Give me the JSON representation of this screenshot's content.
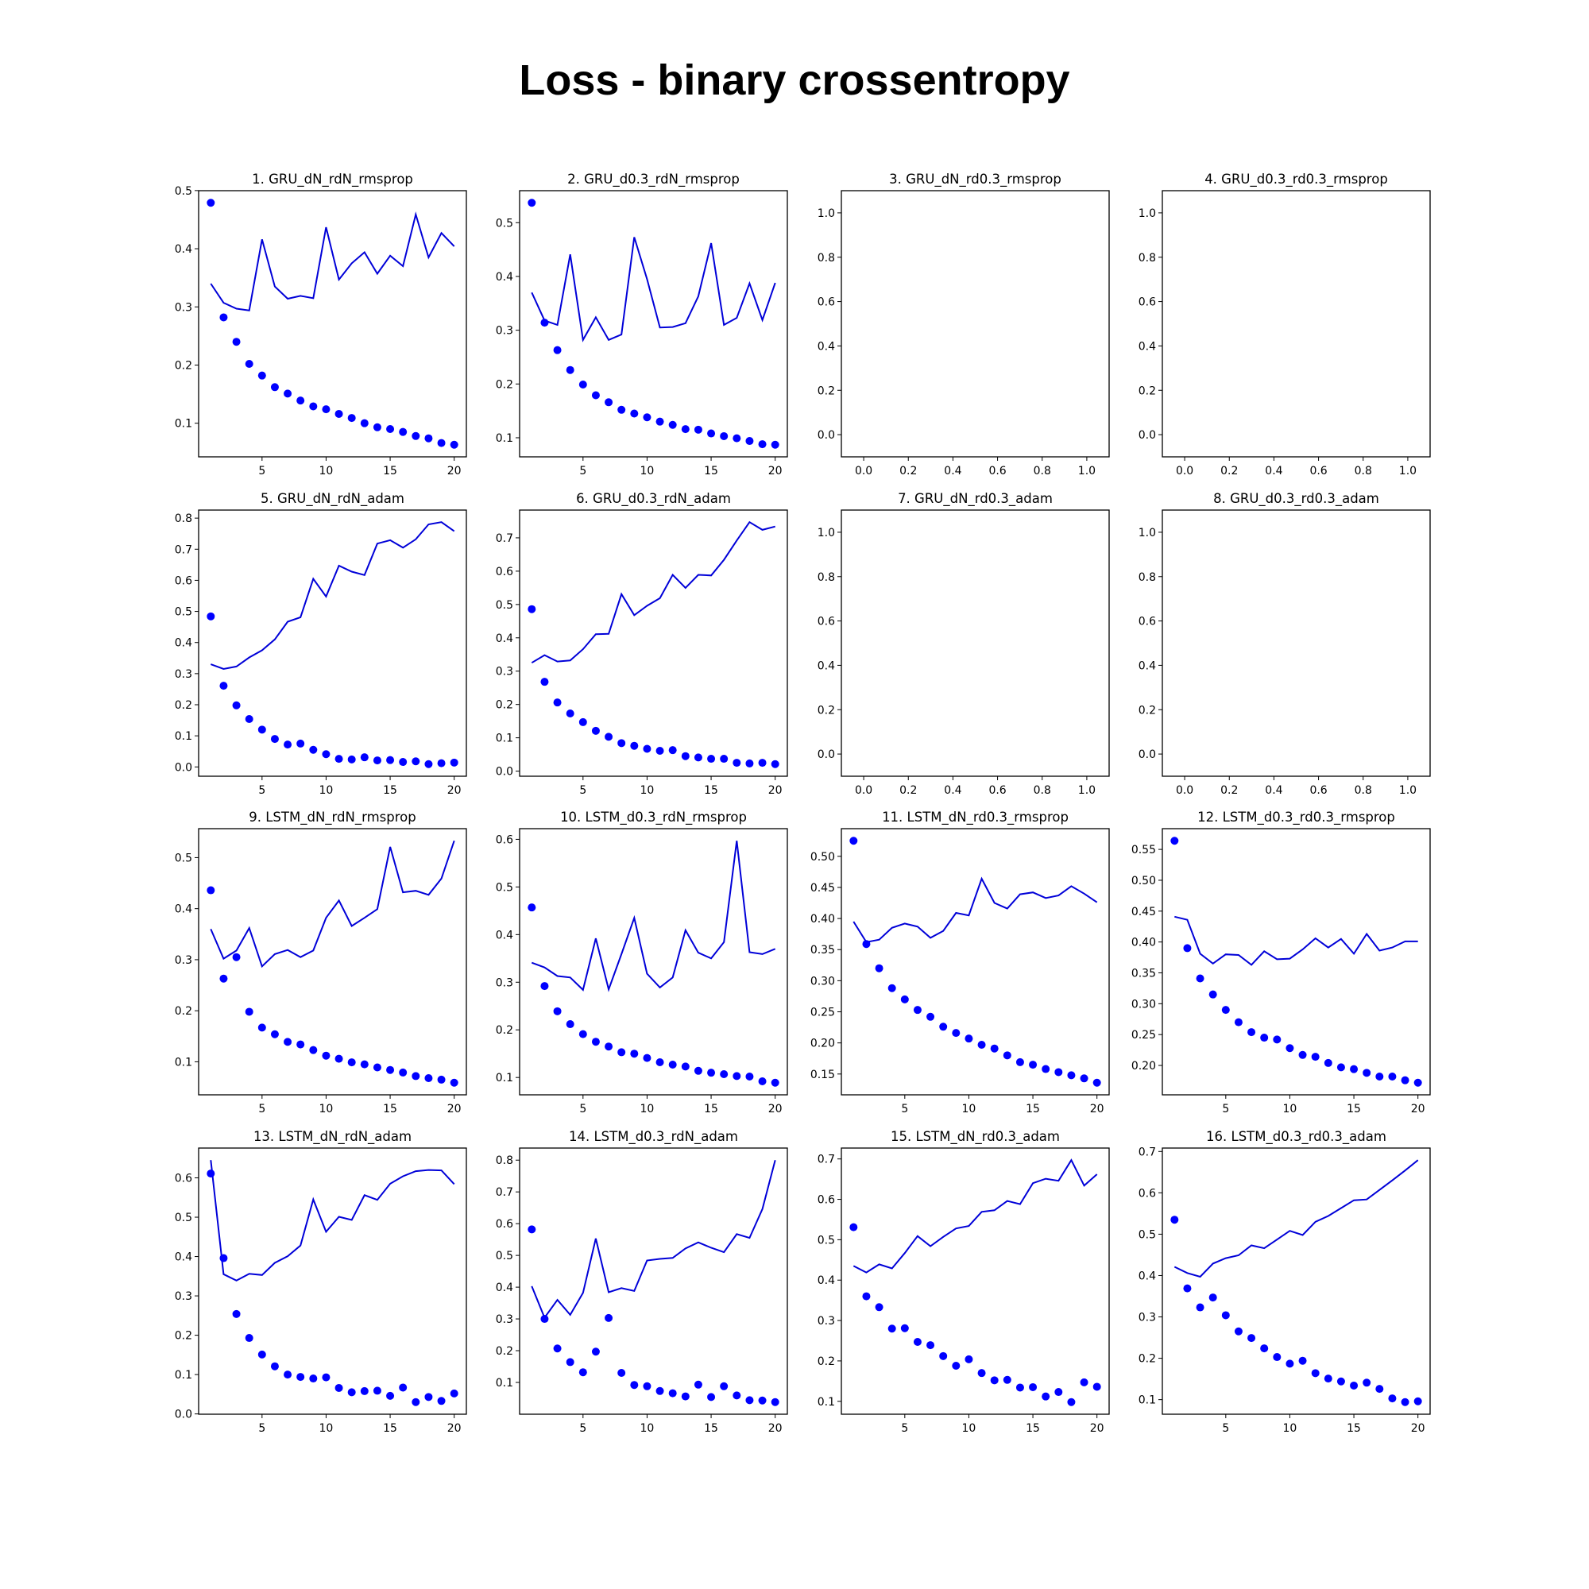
{
  "title": "Loss - binary crossentropy",
  "colors": {
    "line": "#0000d8",
    "dots": "#0000ff",
    "frame": "#000000"
  },
  "chart_data": [
    {
      "type": "line+scatter",
      "title": "1. GRU_dN_rdN_rmsprop",
      "x": [
        1,
        20
      ],
      "xticks": [
        "5",
        "10",
        "15",
        "20"
      ],
      "yticks": [
        "0.1",
        "0.2",
        "0.3",
        "0.4",
        "0.5"
      ],
      "line": [
        0.34,
        0.307,
        0.297,
        0.294,
        0.416,
        0.335,
        0.314,
        0.319,
        0.315,
        0.437,
        0.347,
        0.375,
        0.394,
        0.357,
        0.388,
        0.37,
        0.459,
        0.385,
        0.427,
        0.404
      ],
      "dots": [
        0.479,
        0.282,
        0.24,
        0.202,
        0.182,
        0.162,
        0.151,
        0.139,
        0.129,
        0.124,
        0.116,
        0.109,
        0.1,
        0.093,
        0.09,
        0.085,
        0.078,
        0.074,
        0.066,
        0.063
      ]
    },
    {
      "type": "line+scatter",
      "title": "2. GRU_d0.3_rdN_rmsprop",
      "x": [
        1,
        20
      ],
      "xticks": [
        "5",
        "10",
        "15",
        "20"
      ],
      "yticks": [
        "0.1",
        "0.2",
        "0.3",
        "0.4",
        "0.5"
      ],
      "line": [
        0.37,
        0.318,
        0.31,
        0.441,
        0.282,
        0.324,
        0.282,
        0.292,
        0.473,
        0.395,
        0.305,
        0.306,
        0.313,
        0.363,
        0.462,
        0.31,
        0.323,
        0.387,
        0.319,
        0.388
      ],
      "dots": [
        0.537,
        0.314,
        0.263,
        0.226,
        0.199,
        0.179,
        0.166,
        0.152,
        0.145,
        0.138,
        0.13,
        0.124,
        0.116,
        0.115,
        0.108,
        0.103,
        0.099,
        0.094,
        0.088,
        0.087
      ]
    },
    {
      "type": "empty",
      "title": "3. GRU_dN_rd0.3_rmsprop",
      "xticks": [
        "0.0",
        "0.2",
        "0.4",
        "0.6",
        "0.8",
        "1.0"
      ],
      "yticks": [
        "0.0",
        "0.2",
        "0.4",
        "0.6",
        "0.8",
        "1.0"
      ]
    },
    {
      "type": "empty",
      "title": "4. GRU_d0.3_rd0.3_rmsprop",
      "xticks": [
        "0.0",
        "0.2",
        "0.4",
        "0.6",
        "0.8",
        "1.0"
      ],
      "yticks": [
        "0.0",
        "0.2",
        "0.4",
        "0.6",
        "0.8",
        "1.0"
      ]
    },
    {
      "type": "line+scatter",
      "title": "5. GRU_dN_rdN_adam",
      "x": [
        1,
        20
      ],
      "xticks": [
        "5",
        "10",
        "15",
        "20"
      ],
      "yticks": [
        "0.0",
        "0.1",
        "0.2",
        "0.3",
        "0.4",
        "0.5",
        "0.6",
        "0.7",
        "0.8"
      ],
      "line": [
        0.33,
        0.315,
        0.323,
        0.352,
        0.375,
        0.41,
        0.467,
        0.481,
        0.605,
        0.548,
        0.647,
        0.628,
        0.617,
        0.718,
        0.729,
        0.705,
        0.732,
        0.78,
        0.787,
        0.758
      ],
      "dots": [
        0.484,
        0.261,
        0.198,
        0.154,
        0.12,
        0.09,
        0.072,
        0.075,
        0.055,
        0.041,
        0.026,
        0.024,
        0.031,
        0.021,
        0.022,
        0.016,
        0.018,
        0.009,
        0.012,
        0.014
      ]
    },
    {
      "type": "line+scatter",
      "title": "6. GRU_d0.3_rdN_adam",
      "x": [
        1,
        20
      ],
      "xticks": [
        "5",
        "10",
        "15",
        "20"
      ],
      "yticks": [
        "0.0",
        "0.1",
        "0.2",
        "0.3",
        "0.4",
        "0.5",
        "0.6",
        "0.7"
      ],
      "line": [
        0.325,
        0.348,
        0.329,
        0.332,
        0.366,
        0.411,
        0.412,
        0.531,
        0.468,
        0.496,
        0.519,
        0.589,
        0.55,
        0.589,
        0.587,
        0.634,
        0.692,
        0.747,
        0.724,
        0.734
      ],
      "dots": [
        0.486,
        0.268,
        0.206,
        0.173,
        0.147,
        0.121,
        0.103,
        0.084,
        0.076,
        0.067,
        0.061,
        0.063,
        0.045,
        0.041,
        0.037,
        0.037,
        0.025,
        0.023,
        0.025,
        0.021
      ]
    },
    {
      "type": "empty",
      "title": "7. GRU_dN_rd0.3_adam",
      "xticks": [
        "0.0",
        "0.2",
        "0.4",
        "0.6",
        "0.8",
        "1.0"
      ],
      "yticks": [
        "0.0",
        "0.2",
        "0.4",
        "0.6",
        "0.8",
        "1.0"
      ]
    },
    {
      "type": "empty",
      "title": "8. GRU_d0.3_rd0.3_adam",
      "xticks": [
        "0.0",
        "0.2",
        "0.4",
        "0.6",
        "0.8",
        "1.0"
      ],
      "yticks": [
        "0.0",
        "0.2",
        "0.4",
        "0.6",
        "0.8",
        "1.0"
      ]
    },
    {
      "type": "line+scatter",
      "title": "9. LSTM_dN_rdN_rmsprop",
      "x": [
        1,
        20
      ],
      "xticks": [
        "5",
        "10",
        "15",
        "20"
      ],
      "yticks": [
        "0.1",
        "0.2",
        "0.3",
        "0.4",
        "0.5"
      ],
      "line": [
        0.36,
        0.302,
        0.318,
        0.362,
        0.287,
        0.311,
        0.319,
        0.305,
        0.318,
        0.382,
        0.416,
        0.366,
        0.382,
        0.399,
        0.521,
        0.432,
        0.435,
        0.427,
        0.459,
        0.533
      ],
      "dots": [
        0.436,
        0.263,
        0.305,
        0.198,
        0.167,
        0.154,
        0.139,
        0.134,
        0.123,
        0.112,
        0.106,
        0.099,
        0.095,
        0.089,
        0.084,
        0.079,
        0.072,
        0.068,
        0.065,
        0.059
      ]
    },
    {
      "type": "line+scatter",
      "title": "10. LSTM_d0.3_rdN_rmsprop",
      "x": [
        1,
        20
      ],
      "xticks": [
        "5",
        "10",
        "15",
        "20"
      ],
      "yticks": [
        "0.1",
        "0.2",
        "0.3",
        "0.4",
        "0.5",
        "0.6"
      ],
      "line": [
        0.341,
        0.331,
        0.313,
        0.31,
        0.284,
        0.392,
        0.285,
        0.359,
        0.435,
        0.318,
        0.289,
        0.31,
        0.409,
        0.362,
        0.35,
        0.384,
        0.597,
        0.363,
        0.359,
        0.37
      ],
      "dots": [
        0.457,
        0.292,
        0.239,
        0.212,
        0.191,
        0.175,
        0.165,
        0.153,
        0.15,
        0.141,
        0.132,
        0.127,
        0.123,
        0.114,
        0.11,
        0.107,
        0.103,
        0.102,
        0.092,
        0.089
      ]
    },
    {
      "type": "line+scatter",
      "title": "11. LSTM_dN_rd0.3_rmsprop",
      "x": [
        1,
        20
      ],
      "xticks": [
        "5",
        "10",
        "15",
        "20"
      ],
      "yticks": [
        "0.15",
        "0.20",
        "0.25",
        "0.30",
        "0.35",
        "0.40",
        "0.45",
        "0.50"
      ],
      "line": [
        0.395,
        0.362,
        0.366,
        0.385,
        0.392,
        0.387,
        0.369,
        0.38,
        0.409,
        0.405,
        0.464,
        0.425,
        0.416,
        0.439,
        0.442,
        0.433,
        0.437,
        0.452,
        0.44,
        0.426
      ],
      "dots": [
        0.525,
        0.359,
        0.32,
        0.288,
        0.27,
        0.253,
        0.242,
        0.226,
        0.216,
        0.207,
        0.197,
        0.191,
        0.18,
        0.169,
        0.165,
        0.158,
        0.153,
        0.148,
        0.143,
        0.136
      ]
    },
    {
      "type": "line+scatter",
      "title": "12. LSTM_d0.3_rd0.3_rmsprop",
      "x": [
        1,
        20
      ],
      "xticks": [
        "5",
        "10",
        "15",
        "20"
      ],
      "yticks": [
        "0.20",
        "0.25",
        "0.30",
        "0.35",
        "0.40",
        "0.45",
        "0.50",
        "0.55"
      ],
      "line": [
        0.441,
        0.436,
        0.381,
        0.365,
        0.38,
        0.379,
        0.363,
        0.385,
        0.372,
        0.373,
        0.388,
        0.406,
        0.391,
        0.405,
        0.381,
        0.413,
        0.386,
        0.391,
        0.401,
        0.401
      ],
      "dots": [
        0.564,
        0.39,
        0.341,
        0.315,
        0.29,
        0.27,
        0.254,
        0.245,
        0.242,
        0.228,
        0.217,
        0.214,
        0.204,
        0.197,
        0.194,
        0.188,
        0.182,
        0.182,
        0.176,
        0.172
      ]
    },
    {
      "type": "line+scatter",
      "title": "13. LSTM_dN_rdN_adam",
      "x": [
        1,
        20
      ],
      "xticks": [
        "5",
        "10",
        "15",
        "20"
      ],
      "yticks": [
        "0.0",
        "0.1",
        "0.2",
        "0.3",
        "0.4",
        "0.5",
        "0.6"
      ],
      "line": [
        0.645,
        0.355,
        0.339,
        0.356,
        0.353,
        0.384,
        0.401,
        0.428,
        0.545,
        0.463,
        0.501,
        0.493,
        0.556,
        0.544,
        0.585,
        0.604,
        0.617,
        0.62,
        0.619,
        0.584
      ],
      "dots": [
        0.611,
        0.396,
        0.254,
        0.193,
        0.151,
        0.121,
        0.1,
        0.094,
        0.09,
        0.093,
        0.066,
        0.055,
        0.058,
        0.059,
        0.046,
        0.067,
        0.03,
        0.043,
        0.033,
        0.052
      ]
    },
    {
      "type": "line+scatter",
      "title": "14. LSTM_d0.3_rdN_adam",
      "x": [
        1,
        20
      ],
      "xticks": [
        "5",
        "10",
        "15",
        "20"
      ],
      "yticks": [
        "0.1",
        "0.2",
        "0.3",
        "0.4",
        "0.5",
        "0.6",
        "0.7",
        "0.8"
      ],
      "line": [
        0.403,
        0.304,
        0.36,
        0.313,
        0.382,
        0.553,
        0.384,
        0.397,
        0.388,
        0.484,
        0.489,
        0.492,
        0.522,
        0.541,
        0.524,
        0.51,
        0.567,
        0.555,
        0.646,
        0.8
      ],
      "dots": [
        0.582,
        0.3,
        0.207,
        0.164,
        0.132,
        0.197,
        0.303,
        0.13,
        0.092,
        0.088,
        0.073,
        0.066,
        0.056,
        0.093,
        0.054,
        0.088,
        0.059,
        0.044,
        0.043,
        0.038
      ]
    },
    {
      "type": "line+scatter",
      "title": "15. LSTM_dN_rd0.3_adam",
      "x": [
        1,
        20
      ],
      "xticks": [
        "5",
        "10",
        "15",
        "20"
      ],
      "yticks": [
        "0.1",
        "0.2",
        "0.3",
        "0.4",
        "0.5",
        "0.6",
        "0.7"
      ],
      "line": [
        0.435,
        0.419,
        0.439,
        0.429,
        0.467,
        0.509,
        0.484,
        0.507,
        0.528,
        0.534,
        0.569,
        0.573,
        0.596,
        0.588,
        0.64,
        0.651,
        0.646,
        0.697,
        0.634,
        0.662
      ],
      "dots": [
        0.531,
        0.36,
        0.333,
        0.28,
        0.281,
        0.247,
        0.239,
        0.212,
        0.188,
        0.204,
        0.17,
        0.152,
        0.153,
        0.134,
        0.135,
        0.112,
        0.123,
        0.098,
        0.147,
        0.136
      ]
    },
    {
      "type": "line+scatter",
      "title": "16. LSTM_d0.3_rd0.3_adam",
      "x": [
        1,
        20
      ],
      "xticks": [
        "5",
        "10",
        "15",
        "20"
      ],
      "yticks": [
        "0.1",
        "0.2",
        "0.3",
        "0.4",
        "0.5",
        "0.6",
        "0.7"
      ],
      "line": [
        0.421,
        0.406,
        0.397,
        0.429,
        0.442,
        0.449,
        0.473,
        0.466,
        0.487,
        0.508,
        0.498,
        0.53,
        0.544,
        0.563,
        0.582,
        0.584,
        0.607,
        0.63,
        0.654,
        0.679
      ],
      "dots": [
        0.535,
        0.369,
        0.323,
        0.347,
        0.304,
        0.265,
        0.249,
        0.224,
        0.203,
        0.187,
        0.194,
        0.164,
        0.151,
        0.144,
        0.134,
        0.141,
        0.126,
        0.103,
        0.094,
        0.096
      ]
    }
  ]
}
